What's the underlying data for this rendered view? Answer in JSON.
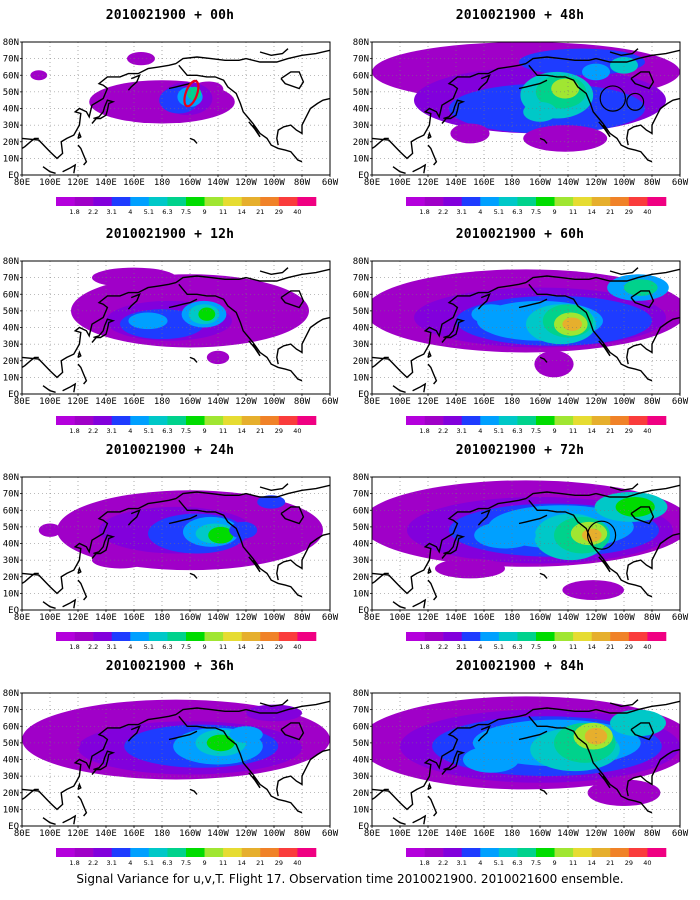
{
  "figure": {
    "caption": "Signal Variance for u,v,T. Flight 17. Observation time 2010021900. 2010021600 ensemble."
  },
  "colorbar": {
    "labels": [
      "1.8",
      "2.2",
      "3.1",
      "4",
      "5.1",
      "6.3",
      "7.5",
      "9",
      "11",
      "14",
      "21",
      "29",
      "40"
    ],
    "colors": [
      "#a000c8",
      "#8200dc",
      "#1e3cff",
      "#00a0ff",
      "#00c8c8",
      "#00d28c",
      "#00dc00",
      "#a0e632",
      "#e6dc32",
      "#e6af2d",
      "#f08228",
      "#fa3c3c",
      "#f00082"
    ]
  },
  "axes": {
    "x_ticks": [
      "80E",
      "100E",
      "120E",
      "140E",
      "160E",
      "180",
      "160W",
      "140W",
      "120W",
      "100W",
      "80W",
      "60W"
    ],
    "y_ticks": [
      "EQ",
      "10N",
      "20N",
      "30N",
      "40N",
      "50N",
      "60N",
      "70N",
      "80N"
    ]
  },
  "panels": [
    {
      "id": "p00",
      "title": "2010021900 + 00h"
    },
    {
      "id": "p48",
      "title": "2010021900 + 48h"
    },
    {
      "id": "p12",
      "title": "2010021900 + 12h"
    },
    {
      "id": "p60",
      "title": "2010021900 + 60h"
    },
    {
      "id": "p24",
      "title": "2010021900 + 24h"
    },
    {
      "id": "p72",
      "title": "2010021900 + 72h"
    },
    {
      "id": "p36",
      "title": "2010021900 + 36h"
    },
    {
      "id": "p84",
      "title": "2010021900 + 84h"
    }
  ],
  "chart_data": [
    {
      "type": "heatmap",
      "title": "2010021900 + 00h",
      "xlim": [
        "80E",
        "60W"
      ],
      "ylim": [
        "EQ",
        "80N"
      ],
      "colorbar_levels": [
        1.8,
        2.2,
        3.1,
        4,
        5.1,
        6.3,
        7.5,
        9,
        11,
        14,
        21,
        29,
        40
      ],
      "max_level_approx": 6.3,
      "region": "North Pacific 160E-130W, 25N-60N"
    },
    {
      "type": "heatmap",
      "title": "2010021900 + 48h",
      "xlim": [
        "80E",
        "60W"
      ],
      "ylim": [
        "EQ",
        "80N"
      ],
      "colorbar_levels": [
        1.8,
        2.2,
        3.1,
        4,
        5.1,
        6.3,
        7.5,
        9,
        11,
        14,
        21,
        29,
        40
      ],
      "max_level_approx": 11,
      "region": "Pacific to North America"
    },
    {
      "type": "heatmap",
      "title": "2010021900 + 12h",
      "xlim": [
        "80E",
        "60W"
      ],
      "ylim": [
        "EQ",
        "80N"
      ],
      "colorbar_levels": [
        1.8,
        2.2,
        3.1,
        4,
        5.1,
        6.3,
        7.5,
        9,
        11,
        14,
        21,
        29,
        40
      ],
      "max_level_approx": 9,
      "region": "North Pacific"
    },
    {
      "type": "heatmap",
      "title": "2010021900 + 60h",
      "xlim": [
        "80E",
        "60W"
      ],
      "ylim": [
        "EQ",
        "80N"
      ],
      "colorbar_levels": [
        1.8,
        2.2,
        3.1,
        4,
        5.1,
        6.3,
        7.5,
        9,
        11,
        14,
        21,
        29,
        40
      ],
      "max_level_approx": 14,
      "region": "Pacific to North America"
    },
    {
      "type": "heatmap",
      "title": "2010021900 + 24h",
      "xlim": [
        "80E",
        "60W"
      ],
      "ylim": [
        "EQ",
        "80N"
      ],
      "colorbar_levels": [
        1.8,
        2.2,
        3.1,
        4,
        5.1,
        6.3,
        7.5,
        9,
        11,
        14,
        21,
        29,
        40
      ],
      "max_level_approx": 11,
      "region": "North Pacific"
    },
    {
      "type": "heatmap",
      "title": "2010021900 + 72h",
      "xlim": [
        "80E",
        "60W"
      ],
      "ylim": [
        "EQ",
        "80N"
      ],
      "colorbar_levels": [
        1.8,
        2.2,
        3.1,
        4,
        5.1,
        6.3,
        7.5,
        9,
        11,
        14,
        21,
        29,
        40
      ],
      "max_level_approx": 14,
      "region": "Pacific to North America"
    },
    {
      "type": "heatmap",
      "title": "2010021900 + 36h",
      "xlim": [
        "80E",
        "60W"
      ],
      "ylim": [
        "EQ",
        "80N"
      ],
      "colorbar_levels": [
        1.8,
        2.2,
        3.1,
        4,
        5.1,
        6.3,
        7.5,
        9,
        11,
        14,
        21,
        29,
        40
      ],
      "max_level_approx": 9,
      "region": "North Pacific"
    },
    {
      "type": "heatmap",
      "title": "2010021900 + 84h",
      "xlim": [
        "80E",
        "60W"
      ],
      "ylim": [
        "EQ",
        "80N"
      ],
      "colorbar_levels": [
        1.8,
        2.2,
        3.1,
        4,
        5.1,
        6.3,
        7.5,
        9,
        11,
        14,
        21,
        29,
        40
      ],
      "max_level_approx": 14,
      "region": "Pacific to North America"
    }
  ]
}
